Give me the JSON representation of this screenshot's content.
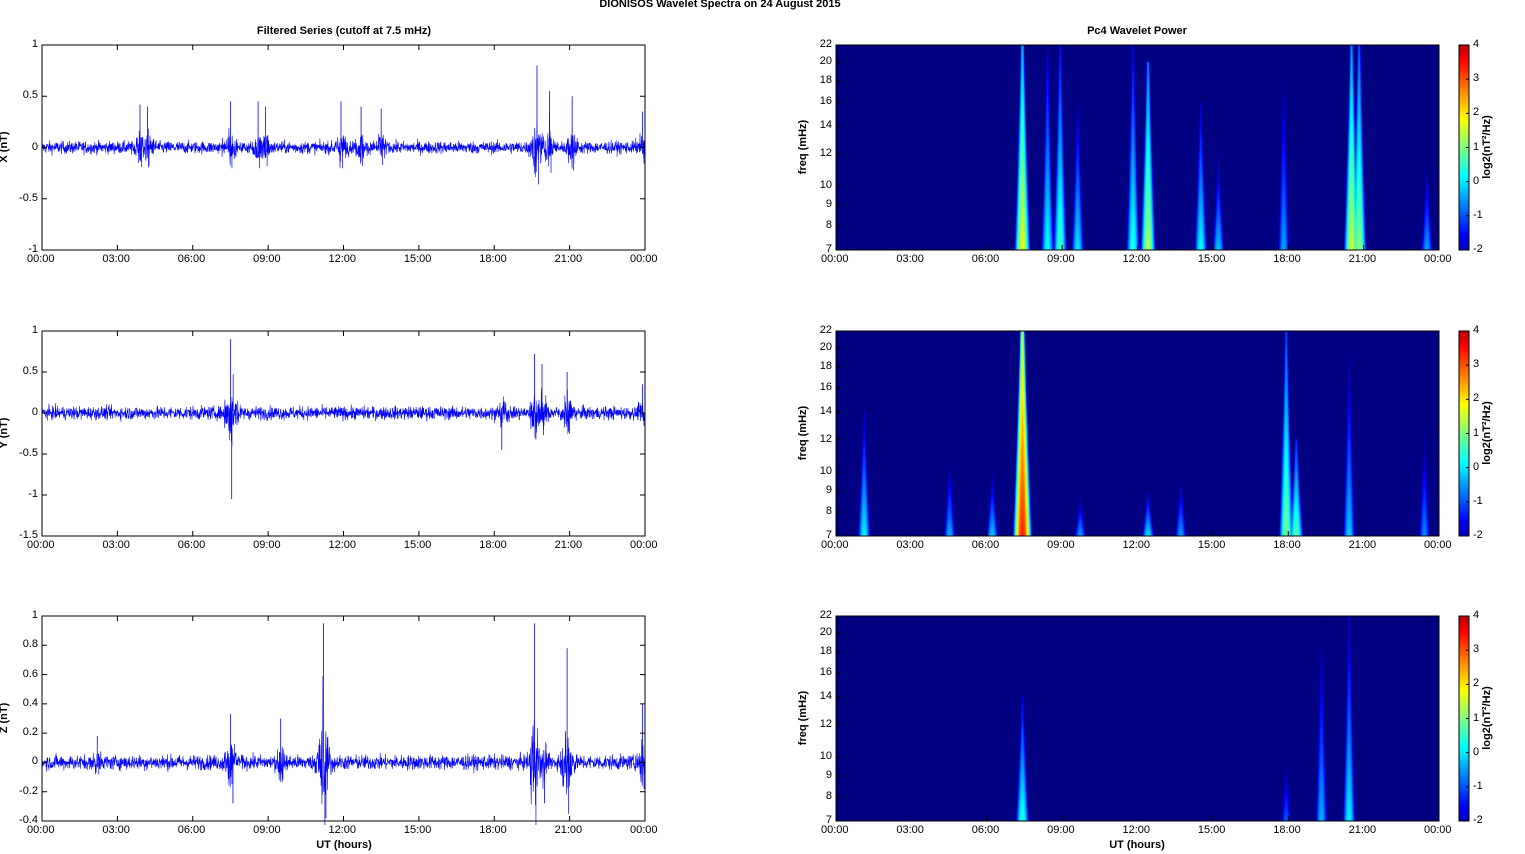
{
  "figure": {
    "suptitle": "DIONISOS Wavelet Spectra on 24 August    2015",
    "left_title": "Filtered Series (cutoff at 7.5 mHz)",
    "right_title": "Pc4 Wavelet Power",
    "xlabel": "UT (hours)"
  },
  "colors": {
    "series": "#0000ff",
    "colormap": [
      "#00008f",
      "#0000ff",
      "#00ffff",
      "#ffff00",
      "#ff0000",
      "#800000"
    ]
  },
  "chart_data": [
    {
      "type": "line",
      "component": "X",
      "ylabel": "X (nT)",
      "xlim_hours": [
        0,
        24
      ],
      "ylim": [
        -1,
        1
      ],
      "yticks": [
        "1",
        "0.5",
        "0",
        "-0.5",
        "-1"
      ],
      "ytick_values": [
        1,
        0.5,
        0,
        -0.5,
        -1
      ],
      "xticks": [
        "00:00",
        "03:00",
        "06:00",
        "09:00",
        "12:00",
        "15:00",
        "18:00",
        "21:00",
        "00:00"
      ],
      "noise_amplitude": 0.06,
      "bursts": [
        {
          "t": 3.9,
          "amp": 0.42
        },
        {
          "t": 4.2,
          "amp": 0.4
        },
        {
          "t": 7.5,
          "amp": 0.45
        },
        {
          "t": 8.6,
          "amp": 0.45
        },
        {
          "t": 8.9,
          "amp": 0.4
        },
        {
          "t": 11.9,
          "amp": 0.45
        },
        {
          "t": 12.7,
          "amp": 0.4
        },
        {
          "t": 13.5,
          "amp": 0.38
        },
        {
          "t": 19.7,
          "amp": 0.8
        },
        {
          "t": 20.2,
          "amp": 0.55
        },
        {
          "t": 21.1,
          "amp": 0.5
        },
        {
          "t": 23.9,
          "amp": 0.35
        }
      ]
    },
    {
      "type": "heatmap",
      "component": "X",
      "ylabel": "freq (mHz)",
      "ylim_mhz": [
        7,
        22
      ],
      "yticks": [
        "22",
        "20",
        "18",
        "16",
        "14",
        "12",
        "10",
        "9",
        "8",
        "7"
      ],
      "ytick_values": [
        22,
        20,
        18,
        16,
        14,
        12,
        10,
        9,
        8,
        7
      ],
      "xticks": [
        "00:00",
        "03:00",
        "06:00",
        "09:00",
        "12:00",
        "15:00",
        "18:00",
        "21:00",
        "00:00"
      ],
      "colorbar": {
        "label": "log2(nT²/Hz)",
        "range": [
          -2,
          4
        ],
        "ticks": [
          "4",
          "3",
          "2",
          "1",
          "0",
          "-1",
          "-2"
        ]
      },
      "events": [
        {
          "t": 7.4,
          "fmax": 22,
          "peak": 2.0
        },
        {
          "t": 8.4,
          "fmax": 22,
          "peak": 0.4
        },
        {
          "t": 8.9,
          "fmax": 22,
          "peak": 0.8
        },
        {
          "t": 9.6,
          "fmax": 16,
          "peak": 0.2
        },
        {
          "t": 11.8,
          "fmax": 22,
          "peak": 0.6
        },
        {
          "t": 12.4,
          "fmax": 20,
          "peak": 1.6
        },
        {
          "t": 14.5,
          "fmax": 16,
          "peak": 0.4
        },
        {
          "t": 15.2,
          "fmax": 12,
          "peak": 0.0
        },
        {
          "t": 17.8,
          "fmax": 22,
          "peak": -0.3
        },
        {
          "t": 20.5,
          "fmax": 22,
          "peak": 1.8
        },
        {
          "t": 20.8,
          "fmax": 22,
          "peak": 1.4
        },
        {
          "t": 23.5,
          "fmax": 12,
          "peak": -0.3
        }
      ]
    },
    {
      "type": "line",
      "component": "Y",
      "ylabel": "Y (nT)",
      "xlim_hours": [
        0,
        24
      ],
      "ylim": [
        -1.5,
        1
      ],
      "yticks": [
        "1",
        "0.5",
        "0",
        "-0.5",
        "-1",
        "-1.5"
      ],
      "ytick_values": [
        1,
        0.5,
        0,
        -0.5,
        -1,
        -1.5
      ],
      "xticks": [
        "00:00",
        "03:00",
        "06:00",
        "09:00",
        "12:00",
        "15:00",
        "18:00",
        "21:00",
        "00:00"
      ],
      "noise_amplitude": 0.08,
      "bursts": [
        {
          "t": 7.5,
          "amp": 0.9
        },
        {
          "t": 7.55,
          "amp": -1.05
        },
        {
          "t": 18.3,
          "amp": -0.45
        },
        {
          "t": 19.6,
          "amp": 0.72
        },
        {
          "t": 19.9,
          "amp": 0.6
        },
        {
          "t": 20.9,
          "amp": 0.5
        },
        {
          "t": 21.0,
          "amp": -0.25
        },
        {
          "t": 23.9,
          "amp": 0.35
        }
      ]
    },
    {
      "type": "heatmap",
      "component": "Y",
      "ylabel": "freq (mHz)",
      "ylim_mhz": [
        7,
        22
      ],
      "yticks": [
        "22",
        "20",
        "18",
        "16",
        "14",
        "12",
        "10",
        "9",
        "8",
        "7"
      ],
      "ytick_values": [
        22,
        20,
        18,
        16,
        14,
        12,
        10,
        9,
        8,
        7
      ],
      "xticks": [
        "00:00",
        "03:00",
        "06:00",
        "09:00",
        "12:00",
        "15:00",
        "18:00",
        "21:00",
        "00:00"
      ],
      "colorbar": {
        "label": "log2(nT²/Hz)",
        "range": [
          -2,
          4
        ],
        "ticks": [
          "4",
          "3",
          "2",
          "1",
          "0",
          "-1",
          "-2"
        ]
      },
      "events": [
        {
          "t": 1.1,
          "fmax": 14,
          "peak": 0.3
        },
        {
          "t": 4.5,
          "fmax": 11,
          "peak": -0.2
        },
        {
          "t": 6.2,
          "fmax": 10,
          "peak": 0.0
        },
        {
          "t": 7.4,
          "fmax": 22,
          "peak": 3.8
        },
        {
          "t": 9.7,
          "fmax": 9,
          "peak": -0.3
        },
        {
          "t": 12.4,
          "fmax": 9,
          "peak": 0.2
        },
        {
          "t": 13.7,
          "fmax": 10,
          "peak": -0.3
        },
        {
          "t": 17.9,
          "fmax": 22,
          "peak": 1.2
        },
        {
          "t": 18.3,
          "fmax": 12,
          "peak": 1.0
        },
        {
          "t": 20.4,
          "fmax": 20,
          "peak": 0.0
        },
        {
          "t": 23.4,
          "fmax": 14,
          "peak": -0.5
        }
      ]
    },
    {
      "type": "line",
      "component": "Z",
      "ylabel": "Z (nT)",
      "xlim_hours": [
        0,
        24
      ],
      "ylim": [
        -0.4,
        1
      ],
      "yticks": [
        "1",
        "0.8",
        "0.6",
        "0.4",
        "0.2",
        "0",
        "-0.2",
        "-0.4"
      ],
      "ytick_values": [
        1,
        0.8,
        0.6,
        0.4,
        0.2,
        0,
        -0.2,
        -0.4
      ],
      "xticks": [
        "00:00",
        "03:00",
        "06:00",
        "09:00",
        "12:00",
        "15:00",
        "18:00",
        "21:00",
        "00:00"
      ],
      "noise_amplitude": 0.05,
      "bursts": [
        {
          "t": 2.2,
          "amp": 0.18
        },
        {
          "t": 7.5,
          "amp": 0.33
        },
        {
          "t": 7.6,
          "amp": -0.28
        },
        {
          "t": 9.5,
          "amp": 0.3
        },
        {
          "t": 11.2,
          "amp": 0.95
        },
        {
          "t": 11.3,
          "amp": -0.38
        },
        {
          "t": 19.6,
          "amp": 0.95
        },
        {
          "t": 20.0,
          "amp": -0.28
        },
        {
          "t": 20.9,
          "amp": 0.78
        },
        {
          "t": 23.9,
          "amp": 0.4
        }
      ]
    },
    {
      "type": "heatmap",
      "component": "Z",
      "ylabel": "freq (mHz)",
      "ylim_mhz": [
        7,
        22
      ],
      "yticks": [
        "22",
        "20",
        "18",
        "16",
        "14",
        "12",
        "10",
        "9",
        "8",
        "7"
      ],
      "ytick_values": [
        22,
        20,
        18,
        16,
        14,
        12,
        10,
        9,
        8,
        7
      ],
      "xticks": [
        "00:00",
        "03:00",
        "06:00",
        "09:00",
        "12:00",
        "15:00",
        "18:00",
        "21:00",
        "00:00"
      ],
      "colorbar": {
        "label": "log2(nT²/Hz)",
        "range": [
          -2,
          4
        ],
        "ticks": [
          "4",
          "3",
          "2",
          "1",
          "0",
          "-1",
          "-2"
        ]
      },
      "events": [
        {
          "t": 7.4,
          "fmax": 14,
          "peak": 0.6
        },
        {
          "t": 17.9,
          "fmax": 11,
          "peak": -0.8
        },
        {
          "t": 19.3,
          "fmax": 22,
          "peak": -0.2
        },
        {
          "t": 20.4,
          "fmax": 22,
          "peak": 0.3
        }
      ]
    }
  ]
}
